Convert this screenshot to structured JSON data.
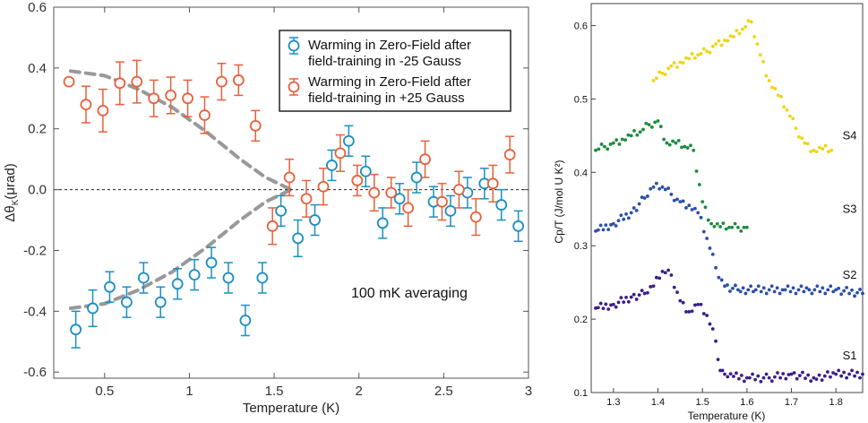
{
  "chart_data": [
    {
      "type": "scatter",
      "title": "",
      "xlabel": "Temperature (K)",
      "ylabel_main": "Δθ",
      "ylabel_sub": "K",
      "ylabel_unit": "(μrad)",
      "xlim": [
        0.2,
        3.0
      ],
      "ylim": [
        -0.62,
        0.6
      ],
      "xticks": [
        0.5,
        1,
        1.5,
        2,
        2.5,
        3
      ],
      "xtick_labels": [
        "0.5",
        "1",
        "1.5",
        "2",
        "2.5",
        "3"
      ],
      "yticks": [
        -0.6,
        -0.4,
        -0.2,
        0.0,
        0.2,
        0.4,
        0.6
      ],
      "ytick_labels": [
        "-0.6",
        "-0.4",
        "-0.2",
        "0.0",
        "0.2",
        "0.4",
        "0.6"
      ],
      "zero_line": true,
      "annotation": "100 mK averaging",
      "legend_position": "top-right",
      "series": [
        {
          "name_line1": "Warming in Zero-Field after",
          "name_line2": "field-training in -25 Gauss",
          "color": "#1b8fc0",
          "x": [
            0.33,
            0.43,
            0.53,
            0.63,
            0.73,
            0.83,
            0.93,
            1.03,
            1.13,
            1.23,
            1.33,
            1.43,
            1.54,
            1.64,
            1.74,
            1.84,
            1.94,
            2.04,
            2.14,
            2.24,
            2.34,
            2.44,
            2.54,
            2.64,
            2.74,
            2.84,
            2.94
          ],
          "y": [
            -0.46,
            -0.39,
            -0.32,
            -0.37,
            -0.29,
            -0.37,
            -0.31,
            -0.28,
            -0.24,
            -0.29,
            -0.43,
            -0.29,
            -0.07,
            -0.16,
            -0.1,
            0.08,
            0.16,
            0.06,
            -0.11,
            -0.03,
            0.04,
            -0.04,
            -0.07,
            -0.01,
            0.02,
            -0.05,
            -0.12
          ],
          "err": [
            0.06,
            0.06,
            0.05,
            0.05,
            0.05,
            0.05,
            0.05,
            0.05,
            0.05,
            0.05,
            0.05,
            0.05,
            0.05,
            0.06,
            0.05,
            0.05,
            0.05,
            0.05,
            0.05,
            0.05,
            0.05,
            0.05,
            0.05,
            0.05,
            0.05,
            0.05,
            0.05
          ]
        },
        {
          "name_line1": "Warming in Zero-Field after",
          "name_line2": "field-training in +25 Gauss",
          "color": "#e8603c",
          "x": [
            0.29,
            0.39,
            0.49,
            0.59,
            0.69,
            0.79,
            0.89,
            0.99,
            1.09,
            1.19,
            1.29,
            1.39,
            1.49,
            1.59,
            1.69,
            1.79,
            1.89,
            1.99,
            2.09,
            2.19,
            2.29,
            2.39,
            2.49,
            2.59,
            2.69,
            2.79,
            2.89
          ],
          "y": [
            0.355,
            0.28,
            0.26,
            0.35,
            0.355,
            0.3,
            0.31,
            0.3,
            0.245,
            0.355,
            0.36,
            0.21,
            -0.12,
            0.04,
            -0.03,
            0.01,
            0.12,
            0.03,
            -0.01,
            -0.01,
            -0.06,
            0.1,
            -0.04,
            0.0,
            -0.09,
            0.02,
            0.115
          ],
          "err": [
            0.0,
            0.06,
            0.07,
            0.07,
            0.07,
            0.06,
            0.06,
            0.06,
            0.06,
            0.06,
            0.05,
            0.05,
            0.06,
            0.06,
            0.06,
            0.06,
            0.06,
            0.05,
            0.06,
            0.05,
            0.06,
            0.06,
            0.06,
            0.06,
            0.06,
            0.06,
            0.06
          ]
        }
      ],
      "guide_curves": [
        {
          "color": "#999999",
          "x": [
            0.3,
            0.5,
            0.7,
            0.9,
            1.1,
            1.3,
            1.45,
            1.6
          ],
          "y": [
            0.39,
            0.375,
            0.33,
            0.27,
            0.19,
            0.1,
            0.04,
            0.0
          ]
        },
        {
          "color": "#999999",
          "x": [
            0.3,
            0.5,
            0.7,
            0.9,
            1.1,
            1.3,
            1.45,
            1.6
          ],
          "y": [
            -0.39,
            -0.375,
            -0.33,
            -0.27,
            -0.19,
            -0.1,
            -0.04,
            0.0
          ]
        }
      ]
    },
    {
      "type": "scatter",
      "title": "",
      "xlabel": "Temperature (K)",
      "ylabel": "Cp/T (J/mol U K²)",
      "xlim": [
        1.25,
        1.86
      ],
      "ylim": [
        0.1,
        0.63
      ],
      "xticks": [
        1.3,
        1.4,
        1.5,
        1.6,
        1.7,
        1.8
      ],
      "xtick_labels": [
        "1.3",
        "1.4",
        "1.5",
        "1.6",
        "1.7",
        "1.8"
      ],
      "yticks": [
        0.1,
        0.2,
        0.3,
        0.4,
        0.5,
        0.6
      ],
      "ytick_labels": [
        "0.1",
        "0.2",
        "0.3",
        "0.4",
        "0.5",
        "0.6"
      ],
      "series": [
        {
          "name": "S4",
          "color": "#f0d414",
          "x": [
            1.39,
            1.41,
            1.43,
            1.45,
            1.47,
            1.49,
            1.51,
            1.53,
            1.55,
            1.57,
            1.59,
            1.61,
            1.63,
            1.65,
            1.67,
            1.69,
            1.71,
            1.73,
            1.75,
            1.77,
            1.79
          ],
          "y": [
            0.525,
            0.535,
            0.545,
            0.55,
            0.555,
            0.56,
            0.565,
            0.575,
            0.58,
            0.585,
            0.595,
            0.605,
            0.56,
            0.525,
            0.505,
            0.485,
            0.46,
            0.44,
            0.43,
            0.432,
            0.43
          ]
        },
        {
          "name": "S3",
          "color": "#1a8c3c",
          "x": [
            1.26,
            1.28,
            1.3,
            1.32,
            1.34,
            1.36,
            1.38,
            1.4,
            1.42,
            1.44,
            1.46,
            1.48,
            1.5,
            1.52,
            1.54,
            1.56,
            1.58,
            1.6
          ],
          "y": [
            0.43,
            0.435,
            0.44,
            0.445,
            0.45,
            0.455,
            0.465,
            0.47,
            0.44,
            0.44,
            0.435,
            0.43,
            0.36,
            0.33,
            0.326,
            0.325,
            0.325,
            0.325
          ]
        },
        {
          "name": "S2",
          "color": "#2a4fa8",
          "x": [
            1.26,
            1.3,
            1.34,
            1.37,
            1.39,
            1.41,
            1.43,
            1.45,
            1.47,
            1.49,
            1.51,
            1.53,
            1.55,
            1.58,
            1.62,
            1.68,
            1.74,
            1.8,
            1.86
          ],
          "y": [
            0.32,
            0.33,
            0.345,
            0.365,
            0.38,
            0.38,
            0.37,
            0.36,
            0.355,
            0.345,
            0.31,
            0.27,
            0.245,
            0.24,
            0.24,
            0.24,
            0.24,
            0.24,
            0.235
          ]
        },
        {
          "name": "S1",
          "color": "#3a1f8a",
          "x": [
            1.26,
            1.3,
            1.34,
            1.37,
            1.39,
            1.41,
            1.43,
            1.45,
            1.47,
            1.49,
            1.51,
            1.53,
            1.54,
            1.55,
            1.57,
            1.6,
            1.65,
            1.7,
            1.75,
            1.8,
            1.86
          ],
          "y": [
            0.215,
            0.22,
            0.23,
            0.235,
            0.245,
            0.265,
            0.26,
            0.225,
            0.21,
            0.22,
            0.205,
            0.17,
            0.13,
            0.125,
            0.122,
            0.12,
            0.12,
            0.125,
            0.12,
            0.125,
            0.125
          ]
        }
      ]
    }
  ]
}
